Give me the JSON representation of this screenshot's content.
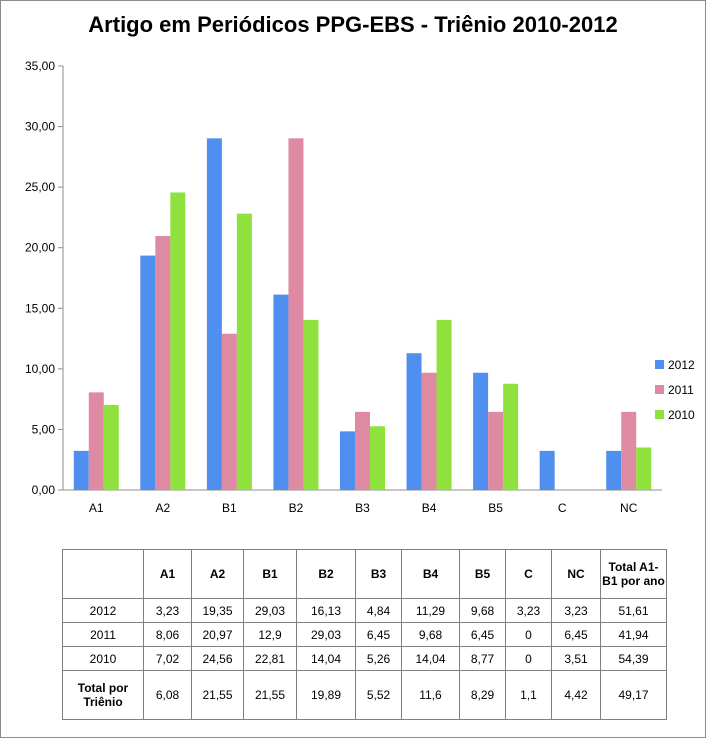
{
  "chart_data": {
    "type": "bar",
    "title": "Artigo em Periódicos PPG-EBS - Triênio 2010-2012",
    "categories": [
      "A1",
      "A2",
      "B1",
      "B2",
      "B3",
      "B4",
      "B5",
      "C",
      "NC"
    ],
    "series": [
      {
        "name": "2012",
        "color": "#4f8ff0",
        "values": [
          3.23,
          19.35,
          29.03,
          16.13,
          4.84,
          11.29,
          9.68,
          3.23,
          3.23
        ]
      },
      {
        "name": "2011",
        "color": "#de8aa2",
        "values": [
          8.06,
          20.97,
          12.9,
          29.03,
          6.45,
          9.68,
          6.45,
          0,
          6.45
        ]
      },
      {
        "name": "2010",
        "color": "#8fe23d",
        "values": [
          7.02,
          24.56,
          22.81,
          14.04,
          5.26,
          14.04,
          8.77,
          0,
          3.51
        ]
      }
    ],
    "ylim": [
      0,
      35
    ],
    "yticks": [
      "0,00",
      "5,00",
      "10,00",
      "15,00",
      "20,00",
      "25,00",
      "30,00",
      "35,00"
    ],
    "grid": false,
    "legend": "right"
  },
  "table": {
    "headers": [
      "",
      "A1",
      "A2",
      "B1",
      "B2",
      "B3",
      "B4",
      "B5",
      "C",
      "NC",
      "Total A1-B1 por ano"
    ],
    "rows": [
      {
        "label": "2012",
        "cells": [
          "3,23",
          "19,35",
          "29,03",
          "16,13",
          "4,84",
          "11,29",
          "9,68",
          "3,23",
          "3,23",
          "51,61"
        ]
      },
      {
        "label": "2011",
        "cells": [
          "8,06",
          "20,97",
          "12,9",
          "29,03",
          "6,45",
          "9,68",
          "6,45",
          "0",
          "6,45",
          "41,94"
        ]
      },
      {
        "label": "2010",
        "cells": [
          "7,02",
          "24,56",
          "22,81",
          "14,04",
          "5,26",
          "14,04",
          "8,77",
          "0",
          "3,51",
          "54,39"
        ]
      },
      {
        "label": "Total por Triênio",
        "cells": [
          "6,08",
          "21,55",
          "21,55",
          "19,89",
          "5,52",
          "11,6",
          "8,29",
          "1,1",
          "4,42",
          "49,17"
        ]
      }
    ]
  }
}
